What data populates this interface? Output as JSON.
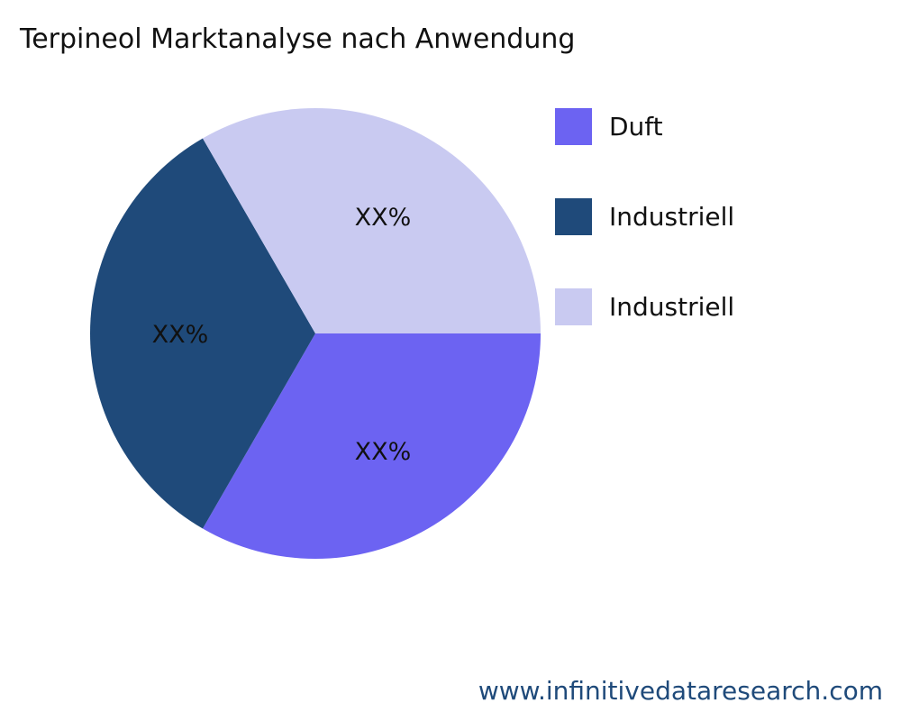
{
  "chart_data": {
    "type": "pie",
    "title": "Terpineol Marktanalyse nach Anwendung",
    "slices": [
      {
        "label": "Duft",
        "value": 33.33,
        "data_label": "XX%",
        "color": "#6c63f2"
      },
      {
        "label": "Industriell",
        "value": 33.33,
        "data_label": "XX%",
        "color": "#1f4a7a"
      },
      {
        "label": "Industriell",
        "value": 33.33,
        "data_label": "XX%",
        "color": "#c9caf1"
      }
    ],
    "start_angle": "3 o'clock",
    "direction": "clockwise",
    "legend_position": "right"
  },
  "footer": "www.infinitivedataresearch.com"
}
